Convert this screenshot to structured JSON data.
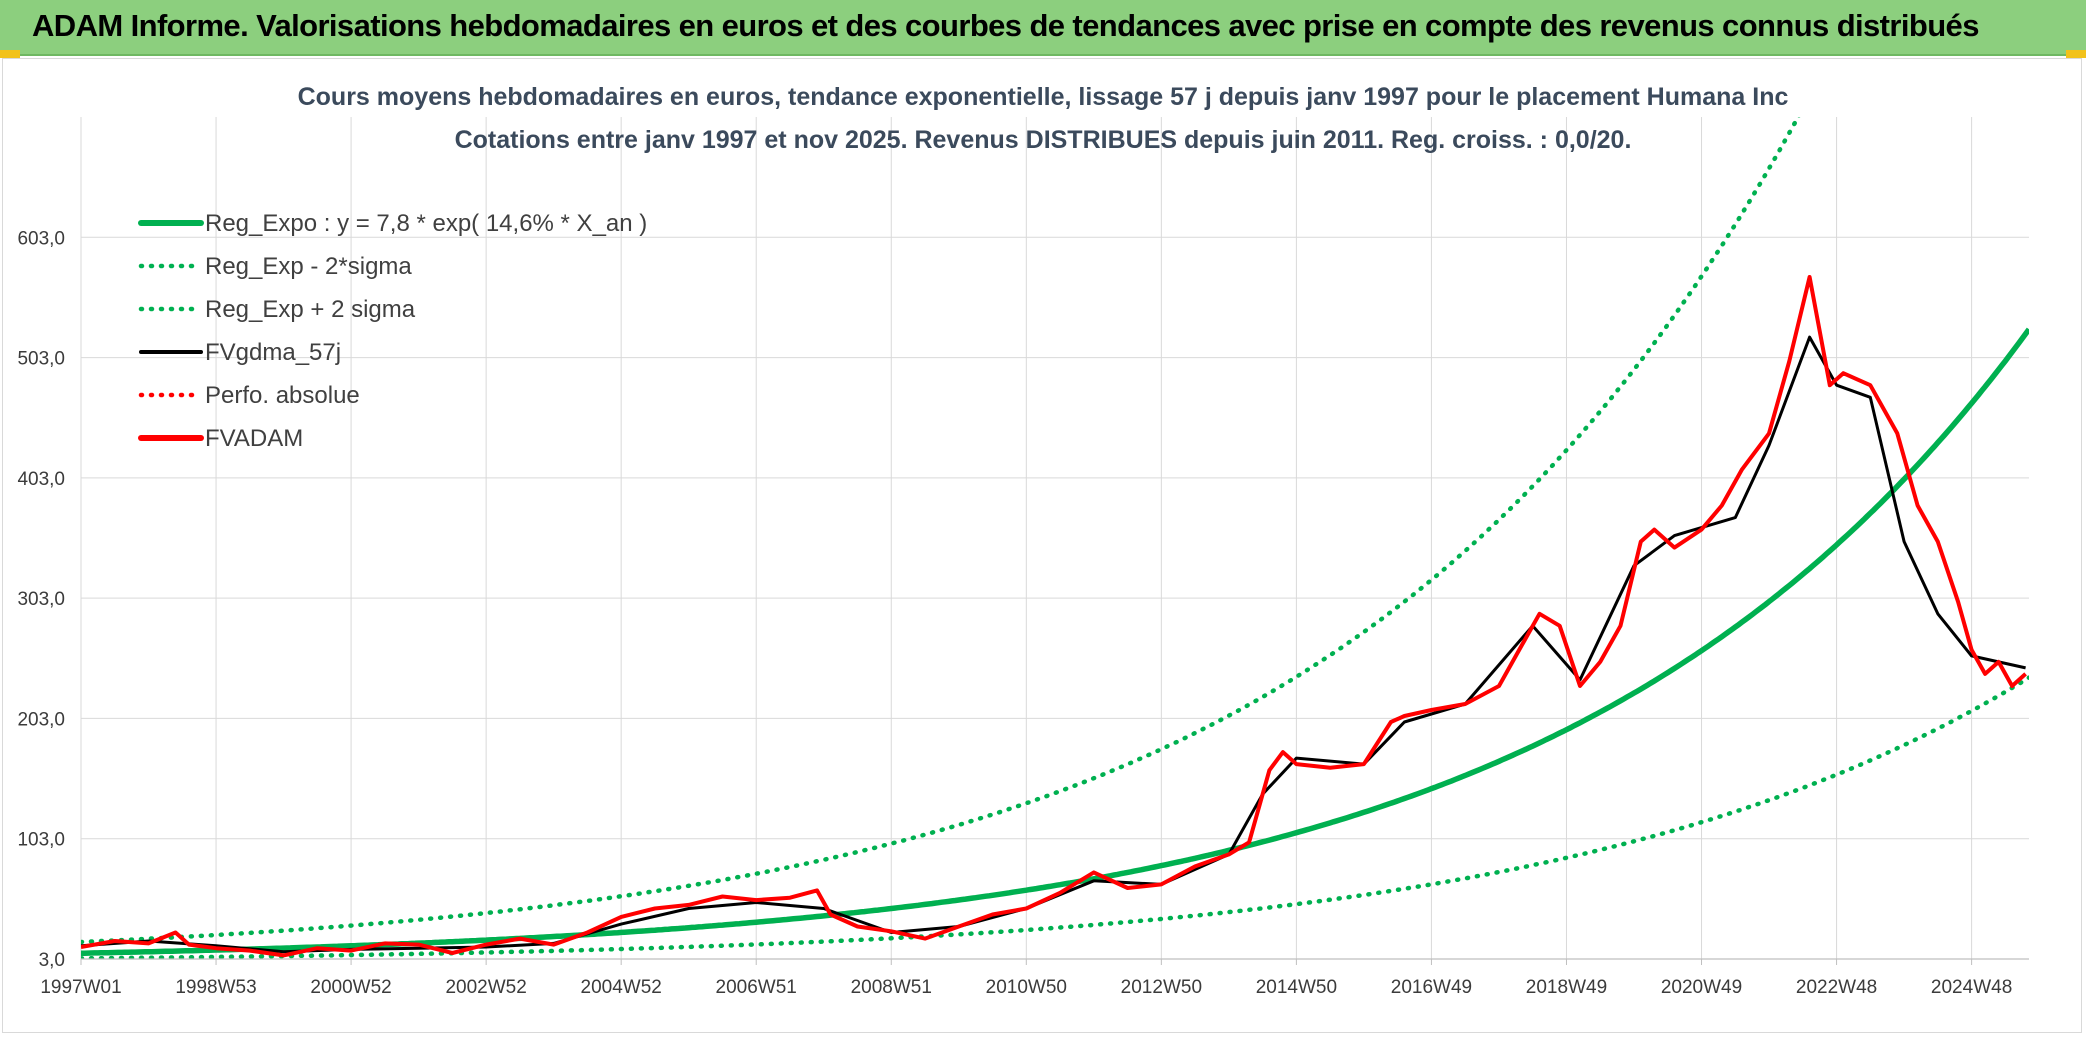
{
  "header": {
    "title": "ADAM Informe. Valorisations hebdomadaires en euros et des courbes de tendances avec prise en compte des revenus connus distribués"
  },
  "colors": {
    "header_bg": "#8ccf7e",
    "reg_expo": "#00b050",
    "fvgdma": "#000000",
    "fvadam": "#ff0000"
  },
  "chart_data": {
    "type": "line",
    "title": "Cours moyens hebdomadaires en euros, tendance exponentielle, lissage 57 j depuis janv 1997 pour le placement Humana Inc",
    "subtitle": "Cotations entre janv 1997 et nov 2025. Revenus DISTRIBUES depuis juin 2011. Reg. croiss. : 0,0/20.",
    "ylim": [
      3,
      703
    ],
    "xlim": [
      1997.0,
      2025.85
    ],
    "y_ticks": [
      "3,0",
      "103,0",
      "203,0",
      "303,0",
      "403,0",
      "503,0",
      "603,0"
    ],
    "x_ticks": [
      "1997W01",
      "1998W53",
      "2000W52",
      "2002W52",
      "2004W52",
      "2006W51",
      "2008W51",
      "2010W50",
      "2012W50",
      "2014W50",
      "2016W49",
      "2018W49",
      "2020W49",
      "2022W48",
      "2024W48"
    ],
    "x_tick_years": [
      1997.0,
      1999.0,
      2001.0,
      2003.0,
      2005.0,
      2007.0,
      2009.0,
      2011.0,
      2013.0,
      2015.0,
      2017.0,
      2019.0,
      2021.0,
      2023.0,
      2025.0
    ],
    "grid": true,
    "legend_position": "top-left",
    "legend": [
      {
        "label": "Reg_Expo : y = 7,8 * exp( 14,6% *  X_an )",
        "color": "#00b050",
        "style": "solid"
      },
      {
        "label": "Reg_Exp - 2*sigma",
        "color": "#00b050",
        "style": "dotted"
      },
      {
        "label": "Reg_Exp + 2 sigma",
        "color": "#00b050",
        "style": "dotted"
      },
      {
        "label": "FVgdma_57j",
        "color": "#000000",
        "style": "solid"
      },
      {
        "label": "Perfo. absolue",
        "color": "#ff0000",
        "style": "dotted"
      },
      {
        "label": "FVADAM",
        "color": "#ff0000",
        "style": "solid"
      }
    ],
    "regression": {
      "a": 7.8,
      "rate": 0.146,
      "minus_2sigma_factor": 0.45,
      "plus_2sigma_factor": 2.2
    },
    "series": [
      {
        "name": "FVADAM",
        "x": [
          1997.0,
          1997.5,
          1998.0,
          1998.4,
          1998.6,
          1999.0,
          1999.5,
          2000.0,
          2000.5,
          2001.0,
          2001.5,
          2002.0,
          2002.5,
          2003.0,
          2003.5,
          2004.0,
          2004.5,
          2005.0,
          2005.5,
          2006.0,
          2006.5,
          2007.0,
          2007.5,
          2007.9,
          2008.1,
          2008.5,
          2009.0,
          2009.5,
          2010.0,
          2010.5,
          2011.0,
          2011.5,
          2012.0,
          2012.5,
          2013.0,
          2013.5,
          2014.0,
          2014.3,
          2014.6,
          2014.8,
          2015.0,
          2015.5,
          2016.0,
          2016.4,
          2016.6,
          2017.0,
          2017.5,
          2018.0,
          2018.3,
          2018.6,
          2018.9,
          2019.2,
          2019.5,
          2019.8,
          2020.1,
          2020.3,
          2020.6,
          2021.0,
          2021.3,
          2021.6,
          2022.0,
          2022.3,
          2022.6,
          2022.9,
          2023.1,
          2023.5,
          2023.9,
          2024.2,
          2024.5,
          2024.8,
          2025.0,
          2025.2,
          2025.4,
          2025.6,
          2025.8
        ],
        "values": [
          13,
          18,
          16,
          25,
          15,
          12,
          10,
          6,
          12,
          10,
          16,
          15,
          8,
          15,
          20,
          15,
          25,
          38,
          45,
          48,
          55,
          52,
          54,
          60,
          40,
          30,
          26,
          20,
          30,
          40,
          45,
          58,
          75,
          62,
          65,
          80,
          90,
          100,
          160,
          175,
          165,
          162,
          165,
          200,
          205,
          210,
          215,
          230,
          260,
          290,
          280,
          230,
          250,
          280,
          350,
          360,
          345,
          360,
          380,
          410,
          440,
          500,
          570,
          480,
          490,
          480,
          440,
          380,
          350,
          300,
          260,
          240,
          250,
          230,
          240
        ]
      },
      {
        "name": "FVgdma_57j",
        "x": [
          1997.0,
          1998.0,
          1999.0,
          2000.0,
          2001.0,
          2002.0,
          2003.0,
          2004.0,
          2005.0,
          2006.0,
          2007.0,
          2008.0,
          2009.0,
          2010.0,
          2011.0,
          2012.0,
          2013.0,
          2014.0,
          2014.5,
          2015.0,
          2016.0,
          2016.6,
          2017.5,
          2018.5,
          2019.2,
          2020.0,
          2020.6,
          2021.5,
          2022.0,
          2022.6,
          2023.0,
          2023.5,
          2024.0,
          2024.5,
          2025.0,
          2025.8
        ],
        "values": [
          14,
          18,
          14,
          9,
          11,
          12,
          13,
          16,
          32,
          45,
          50,
          45,
          25,
          30,
          45,
          68,
          65,
          90,
          140,
          170,
          165,
          200,
          215,
          280,
          235,
          330,
          355,
          370,
          430,
          520,
          480,
          470,
          350,
          290,
          255,
          245
        ]
      }
    ]
  }
}
